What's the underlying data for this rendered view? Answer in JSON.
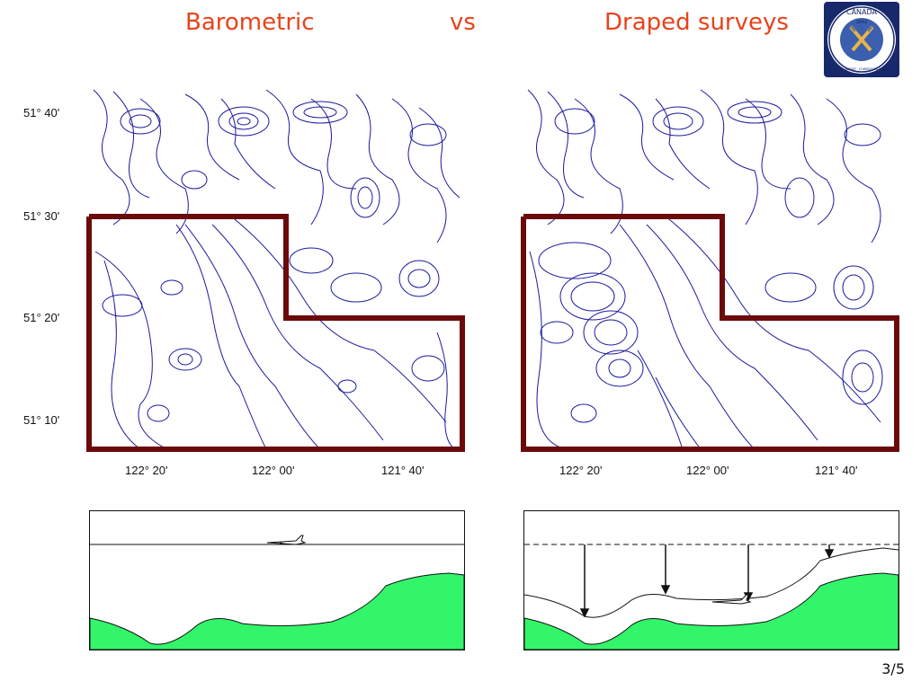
{
  "slide": {
    "title_left": "Barometric",
    "title_middle": "vs",
    "title_right": "Draped surveys",
    "page_number": "3/5"
  },
  "logo": {
    "text_top": "CANADA",
    "text_ring": "GEOLOGICAL SURVEY · COMMISSION GÉOLOGIQUE",
    "year": "1842"
  },
  "maps": {
    "y_ticks": [
      "51° 40'",
      "51° 30'",
      "51° 20'",
      "51° 10'"
    ],
    "x_ticks": [
      "122° 20'",
      "122° 00'",
      "121° 40'"
    ],
    "contour_color": "#1a1aa0",
    "outline_color": "#6b0a0a"
  },
  "colors": {
    "title": "#e8431a",
    "terrain": "#33f56a"
  }
}
